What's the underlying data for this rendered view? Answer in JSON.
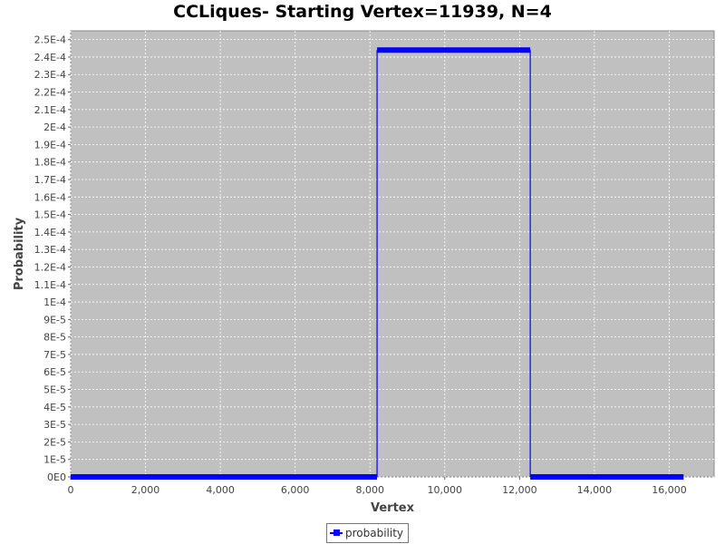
{
  "chart_data": {
    "type": "line",
    "title": "CCLiques- Starting Vertex=11939, N=4",
    "xlabel": "Vertex",
    "ylabel": "Probability",
    "xlim": [
      0,
      17200
    ],
    "ylim": [
      0,
      0.000255
    ],
    "x_ticks": [
      0,
      2000,
      4000,
      6000,
      8000,
      10000,
      12000,
      14000,
      16000
    ],
    "x_tick_labels": [
      "0",
      "2,000",
      "4,000",
      "6,000",
      "8,000",
      "10,000",
      "12,000",
      "14,000",
      "16,000"
    ],
    "y_ticks": [
      0,
      1e-05,
      2e-05,
      3e-05,
      4e-05,
      5e-05,
      6e-05,
      7e-05,
      8e-05,
      9e-05,
      0.0001,
      0.00011,
      0.00012,
      0.00013,
      0.00014,
      0.00015,
      0.00016,
      0.00017,
      0.00018,
      0.00019,
      0.0002,
      0.00021,
      0.00022,
      0.00023,
      0.00024,
      0.00025
    ],
    "y_tick_labels": [
      "0E0",
      "1E-5",
      "2E-5",
      "3E-5",
      "4E-5",
      "5E-5",
      "6E-5",
      "7E-5",
      "8E-5",
      "9E-5",
      "1E-4",
      "1.1E-4",
      "1.2E-4",
      "1.3E-4",
      "1.4E-4",
      "1.5E-4",
      "1.6E-4",
      "1.7E-4",
      "1.8E-4",
      "1.9E-4",
      "2E-4",
      "2.1E-4",
      "2.2E-4",
      "2.3E-4",
      "2.4E-4",
      "2.5E-4"
    ],
    "grid": true,
    "legend_position": "bottom-center",
    "series": [
      {
        "name": "probability",
        "color": "#0000ff",
        "segments": [
          {
            "x_start": 0,
            "x_end": 8190,
            "y": 0
          },
          {
            "x_start": 8190,
            "x_end": 12285,
            "y": 0.000244
          },
          {
            "x_start": 12285,
            "x_end": 16384,
            "y": 0
          }
        ]
      }
    ]
  },
  "colors": {
    "plot_background": "#c0c0c0",
    "grid": "#ffffff",
    "series": "#0000ff"
  }
}
